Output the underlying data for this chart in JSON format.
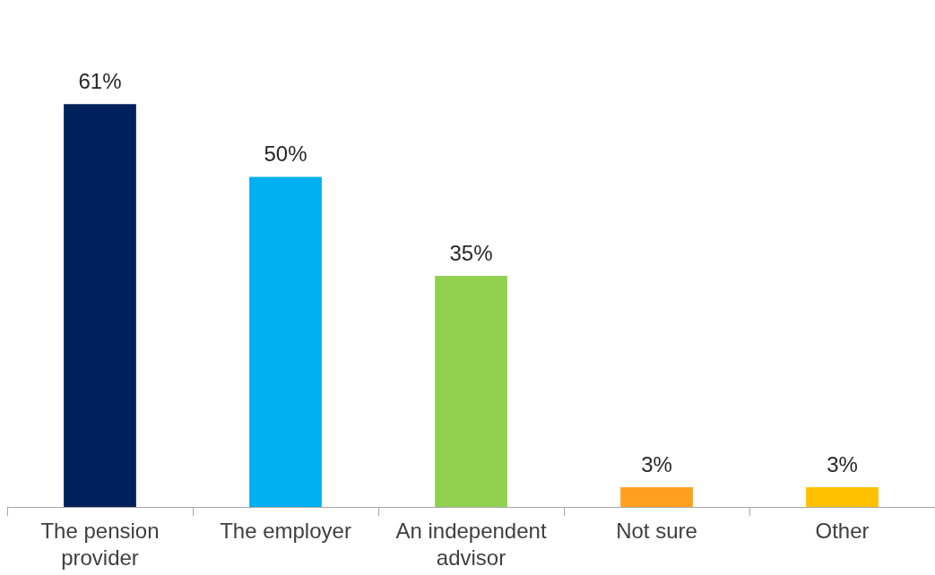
{
  "chart_data": {
    "type": "bar",
    "categories": [
      "The pension provider",
      "The employer",
      "An independent advisor",
      "Not sure",
      "Other"
    ],
    "values": [
      61,
      50,
      35,
      3,
      3
    ],
    "colors": [
      "#00205b",
      "#00b0f0",
      "#92d050",
      "#ffa020",
      "#ffc000"
    ],
    "value_labels": [
      "61%",
      "50%",
      "35%",
      "3%",
      "3%"
    ],
    "tick_labels": "x",
    "grid": false,
    "legend": false
  }
}
